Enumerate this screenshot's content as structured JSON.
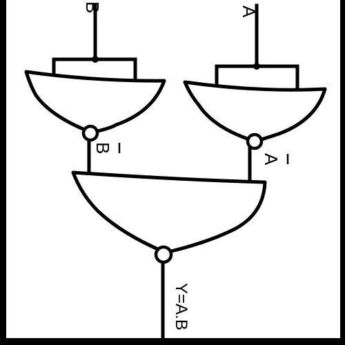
{
  "labels": {
    "input_a": "A",
    "input_b": "B",
    "not_a": "A",
    "not_b": "B",
    "output": "Y=A.B"
  },
  "colors": {
    "line": "#000000",
    "background": "#ffffff"
  }
}
